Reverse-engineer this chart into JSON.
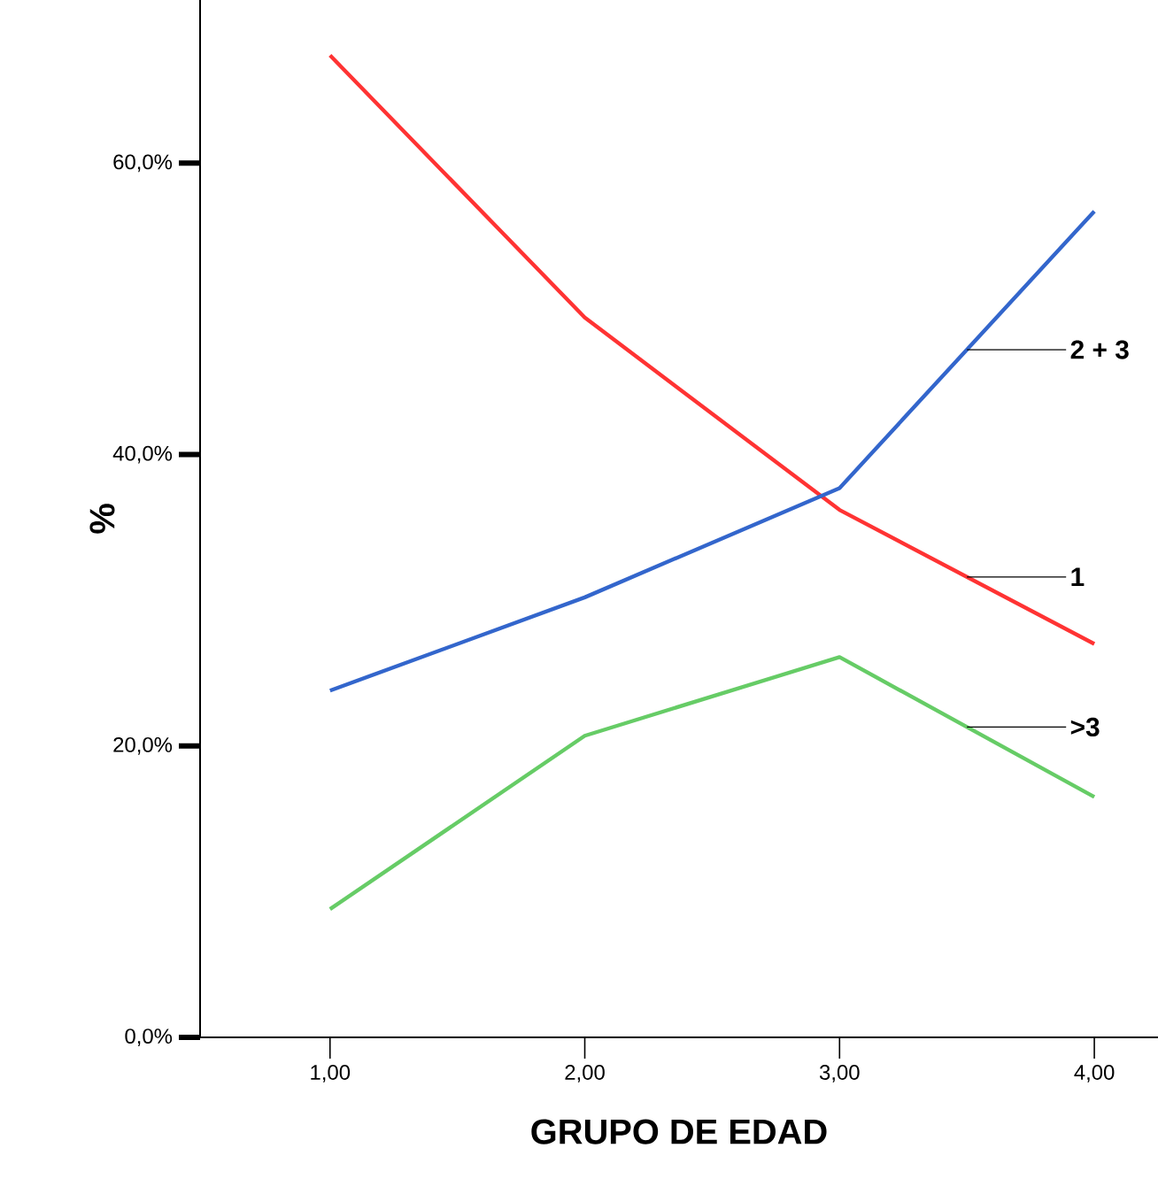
{
  "chart_data": {
    "type": "line",
    "xlabel": "GRUPO DE EDAD",
    "ylabel": "%",
    "x": [
      1,
      2,
      3,
      4
    ],
    "series": [
      {
        "name": "1",
        "color": "#ff3333",
        "values": [
          67.4,
          49.4,
          36.2,
          27.0
        ]
      },
      {
        "name": "2 + 3",
        "color": "#3366cc",
        "values": [
          23.8,
          30.2,
          37.7,
          56.7
        ]
      },
      {
        "name": ">3",
        "color": "#66cc66",
        "values": [
          8.8,
          20.7,
          26.1,
          16.5
        ]
      }
    ],
    "xlim": [
      0.49,
      4.25
    ],
    "ylim": [
      0,
      71.2
    ],
    "xticks": [
      {
        "value": 1,
        "label": "1,00"
      },
      {
        "value": 2,
        "label": "2,00"
      },
      {
        "value": 3,
        "label": "3,00"
      },
      {
        "value": 4,
        "label": "4,00"
      }
    ],
    "yticks": [
      {
        "value": 0,
        "label": "0,0%"
      },
      {
        "value": 20,
        "label": "20,0%"
      },
      {
        "value": 40,
        "label": "40,0%"
      },
      {
        "value": 60,
        "label": "60,0%"
      }
    ],
    "grid": false,
    "marker": "none",
    "line_style": "solid"
  }
}
